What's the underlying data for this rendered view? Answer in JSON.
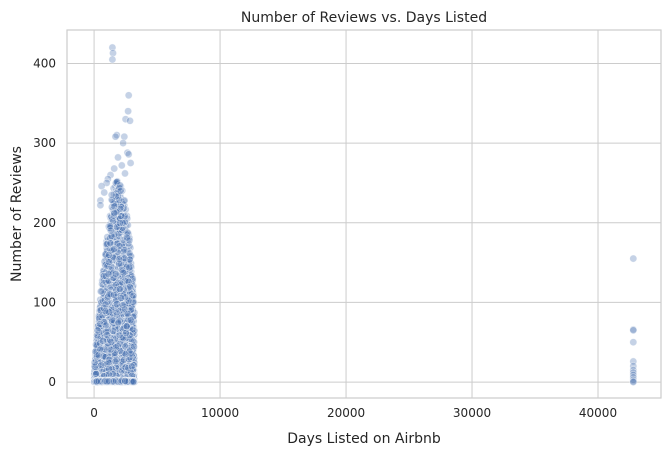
{
  "chart_data": {
    "type": "scatter",
    "title": "Number of Reviews vs. Days Listed",
    "xlabel": "Days Listed on Airbnb",
    "ylabel": "Number of Reviews",
    "xlim": [
      -2150,
      45000
    ],
    "ylim": [
      -20,
      442
    ],
    "xticks": [
      0,
      10000,
      20000,
      30000,
      40000
    ],
    "xtick_labels": [
      "0",
      "10000",
      "20000",
      "30000",
      "40000"
    ],
    "yticks": [
      0,
      100,
      200,
      300,
      400
    ],
    "ytick_labels": [
      "0",
      "100",
      "200",
      "300",
      "400"
    ],
    "grid": true,
    "legend": "none",
    "color": "#4c72b0",
    "main_cluster": {
      "x_range": [
        0,
        3200
      ],
      "peak_x": 1700,
      "max_review_envelope": [
        [
          0,
          20
        ],
        [
          200,
          55
        ],
        [
          500,
          110
        ],
        [
          800,
          150
        ],
        [
          1200,
          210
        ],
        [
          1600,
          250
        ],
        [
          2000,
          255
        ],
        [
          2400,
          230
        ],
        [
          2700,
          200
        ],
        [
          3000,
          150
        ],
        [
          3200,
          100
        ]
      ],
      "outliers": [
        {
          "x": 1450,
          "y": 420
        },
        {
          "x": 1500,
          "y": 413
        },
        {
          "x": 1450,
          "y": 405
        },
        {
          "x": 2750,
          "y": 360
        },
        {
          "x": 2700,
          "y": 340
        },
        {
          "x": 2500,
          "y": 330
        },
        {
          "x": 2850,
          "y": 328
        },
        {
          "x": 2400,
          "y": 308
        },
        {
          "x": 1800,
          "y": 310
        },
        {
          "x": 1700,
          "y": 308
        },
        {
          "x": 2300,
          "y": 300
        },
        {
          "x": 2650,
          "y": 288
        },
        {
          "x": 2750,
          "y": 286
        },
        {
          "x": 1900,
          "y": 282
        },
        {
          "x": 2900,
          "y": 275
        },
        {
          "x": 2200,
          "y": 272
        },
        {
          "x": 1600,
          "y": 268
        },
        {
          "x": 2450,
          "y": 262
        },
        {
          "x": 1300,
          "y": 260
        },
        {
          "x": 1100,
          "y": 255
        },
        {
          "x": 1000,
          "y": 250
        },
        {
          "x": 600,
          "y": 246
        },
        {
          "x": 2000,
          "y": 244
        },
        {
          "x": 2100,
          "y": 240
        },
        {
          "x": 800,
          "y": 238
        },
        {
          "x": 1400,
          "y": 235
        },
        {
          "x": 500,
          "y": 228
        },
        {
          "x": 500,
          "y": 222
        }
      ]
    },
    "far_cluster": [
      {
        "x": 42800,
        "y": 155
      },
      {
        "x": 42800,
        "y": 66
      },
      {
        "x": 42800,
        "y": 65
      },
      {
        "x": 42800,
        "y": 50
      },
      {
        "x": 42800,
        "y": 26
      },
      {
        "x": 42800,
        "y": 20
      },
      {
        "x": 42800,
        "y": 15
      },
      {
        "x": 42800,
        "y": 12
      },
      {
        "x": 42800,
        "y": 9
      },
      {
        "x": 42800,
        "y": 6
      },
      {
        "x": 42800,
        "y": 3
      },
      {
        "x": 42800,
        "y": 1
      },
      {
        "x": 42800,
        "y": 0
      }
    ]
  }
}
